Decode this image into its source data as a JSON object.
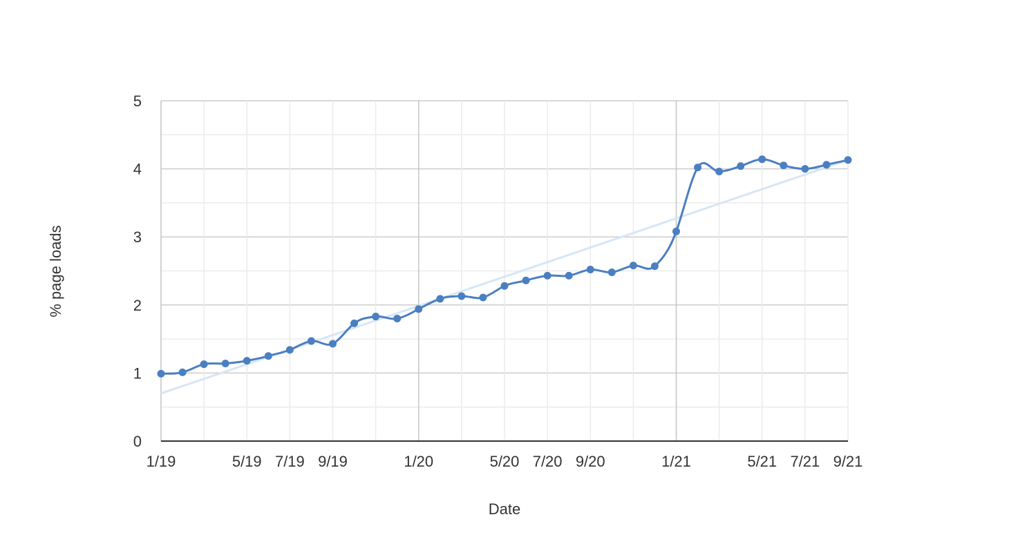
{
  "chart_data": {
    "type": "line",
    "title": "",
    "xlabel": "Date",
    "ylabel": "% page loads",
    "ylim": [
      0,
      5
    ],
    "yticks": [
      "0",
      "1",
      "2",
      "3",
      "4",
      "5"
    ],
    "grid": true,
    "legend": "none",
    "curve": "smooth",
    "trendline": {
      "type": "linear",
      "start": 0.7,
      "end": 4.13,
      "color": "#d6e6f5"
    },
    "colors": {
      "series": "#4a7fc1",
      "trendline": "#d6e6f5",
      "grid_minor": "#ebebeb",
      "grid_major": "#cccccc",
      "axis": "#333333"
    },
    "x": [
      "1/19",
      "2/19",
      "3/19",
      "4/19",
      "5/19",
      "6/19",
      "7/19",
      "8/19",
      "9/19",
      "10/19",
      "11/19",
      "12/19",
      "1/20",
      "2/20",
      "3/20",
      "4/20",
      "5/20",
      "6/20",
      "7/20",
      "8/20",
      "9/20",
      "10/20",
      "11/20",
      "12/20",
      "1/21",
      "2/21",
      "3/21",
      "4/21",
      "5/21",
      "6/21",
      "7/21",
      "8/21",
      "9/21"
    ],
    "xtick_labels": [
      "1/19",
      "5/19",
      "7/19",
      "9/19",
      "1/20",
      "5/20",
      "7/20",
      "9/20",
      "1/21",
      "5/21",
      "7/21",
      "9/21"
    ],
    "series": [
      {
        "values": [
          0.99,
          1.01,
          1.13,
          1.14,
          1.18,
          1.25,
          1.34,
          1.47,
          1.43,
          1.73,
          1.83,
          1.8,
          1.94,
          2.09,
          2.13,
          2.11,
          2.28,
          2.36,
          2.43,
          2.43,
          2.52,
          2.48,
          2.58,
          2.57,
          3.08,
          4.02,
          3.96,
          4.04,
          4.14,
          4.05,
          4.0,
          4.06,
          4.13
        ]
      }
    ]
  }
}
